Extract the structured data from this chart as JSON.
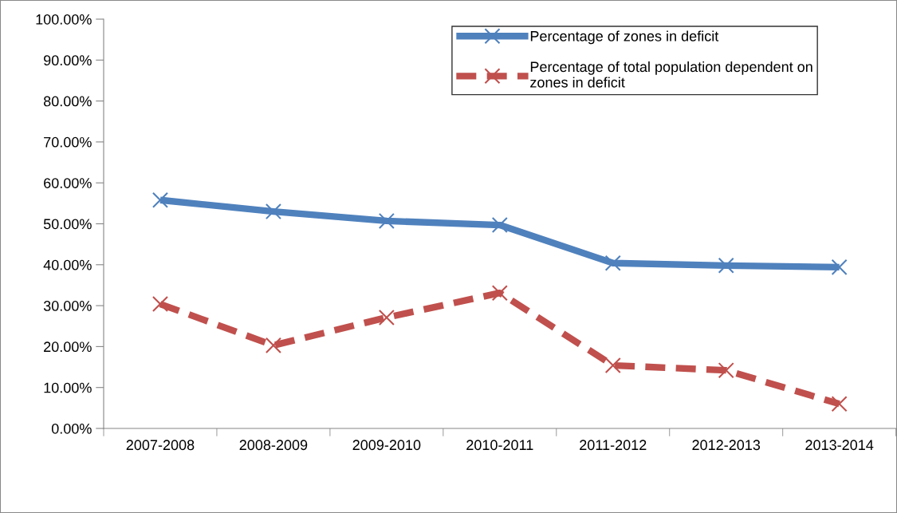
{
  "chart_data": {
    "type": "line",
    "categories": [
      "2007-2008",
      "2008-2009",
      "2009-2010",
      "2010-2011",
      "2011-2012",
      "2012-2013",
      "2013-2014"
    ],
    "series": [
      {
        "name": "Percentage of zones in deficit",
        "color": "#4f81bd",
        "line_style": "solid",
        "values": [
          55.8,
          53.0,
          50.7,
          49.7,
          40.4,
          39.8,
          39.4
        ]
      },
      {
        "name": "Percentage of total population dependent on zones in deficit",
        "color": "#c0504d",
        "line_style": "dashed",
        "values": [
          30.4,
          20.3,
          27.1,
          33.1,
          15.4,
          14.2,
          6.0
        ]
      }
    ],
    "ylim": [
      0,
      100
    ],
    "yticks": [
      {
        "value": 0,
        "label": "0.00%"
      },
      {
        "value": 10,
        "label": "10.00%"
      },
      {
        "value": 20,
        "label": "20.00%"
      },
      {
        "value": 30,
        "label": "30.00%"
      },
      {
        "value": 40,
        "label": "40.00%"
      },
      {
        "value": 50,
        "label": "50.00%"
      },
      {
        "value": 60,
        "label": "60.00%"
      },
      {
        "value": 70,
        "label": "70.00%"
      },
      {
        "value": 80,
        "label": "80.00%"
      },
      {
        "value": 90,
        "label": "90.00%"
      },
      {
        "value": 100,
        "label": "100.00%"
      }
    ],
    "marker": "cross",
    "grid": false,
    "legend": "top right"
  }
}
